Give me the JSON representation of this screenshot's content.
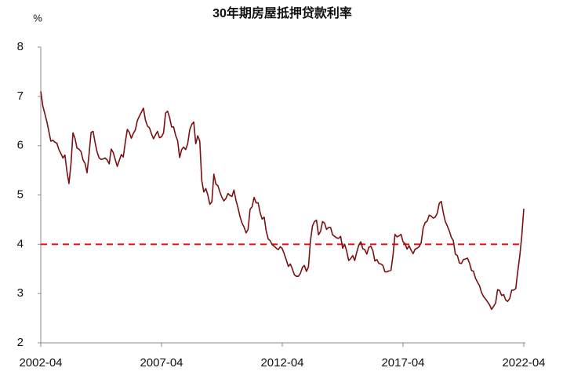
{
  "chart_data": {
    "type": "line",
    "title": "30年期房屋抵押贷款利率",
    "y_label": "%",
    "x": [
      "2002-04",
      "2002-05",
      "2002-06",
      "2002-07",
      "2002-08",
      "2002-09",
      "2002-10",
      "2002-11",
      "2002-12",
      "2003-01",
      "2003-02",
      "2003-03",
      "2003-04",
      "2003-05",
      "2003-06",
      "2003-07",
      "2003-08",
      "2003-09",
      "2003-10",
      "2003-11",
      "2003-12",
      "2004-01",
      "2004-02",
      "2004-03",
      "2004-04",
      "2004-05",
      "2004-06",
      "2004-07",
      "2004-08",
      "2004-09",
      "2004-10",
      "2004-11",
      "2004-12",
      "2005-01",
      "2005-02",
      "2005-03",
      "2005-04",
      "2005-05",
      "2005-06",
      "2005-07",
      "2005-08",
      "2005-09",
      "2005-10",
      "2005-11",
      "2005-12",
      "2006-01",
      "2006-02",
      "2006-03",
      "2006-04",
      "2006-05",
      "2006-06",
      "2006-07",
      "2006-08",
      "2006-09",
      "2006-10",
      "2006-11",
      "2006-12",
      "2007-01",
      "2007-02",
      "2007-03",
      "2007-04",
      "2007-05",
      "2007-06",
      "2007-07",
      "2007-08",
      "2007-09",
      "2007-10",
      "2007-11",
      "2007-12",
      "2008-01",
      "2008-02",
      "2008-03",
      "2008-04",
      "2008-05",
      "2008-06",
      "2008-07",
      "2008-08",
      "2008-09",
      "2008-10",
      "2008-11",
      "2008-12",
      "2009-01",
      "2009-02",
      "2009-03",
      "2009-04",
      "2009-05",
      "2009-06",
      "2009-07",
      "2009-08",
      "2009-09",
      "2009-10",
      "2009-11",
      "2009-12",
      "2010-01",
      "2010-02",
      "2010-03",
      "2010-04",
      "2010-05",
      "2010-06",
      "2010-07",
      "2010-08",
      "2010-09",
      "2010-10",
      "2010-11",
      "2010-12",
      "2011-01",
      "2011-02",
      "2011-03",
      "2011-04",
      "2011-05",
      "2011-06",
      "2011-07",
      "2011-08",
      "2011-09",
      "2011-10",
      "2011-11",
      "2011-12",
      "2012-01",
      "2012-02",
      "2012-03",
      "2012-04",
      "2012-05",
      "2012-06",
      "2012-07",
      "2012-08",
      "2012-09",
      "2012-10",
      "2012-11",
      "2012-12",
      "2013-01",
      "2013-02",
      "2013-03",
      "2013-04",
      "2013-05",
      "2013-06",
      "2013-07",
      "2013-08",
      "2013-09",
      "2013-10",
      "2013-11",
      "2013-12",
      "2014-01",
      "2014-02",
      "2014-03",
      "2014-04",
      "2014-05",
      "2014-06",
      "2014-07",
      "2014-08",
      "2014-09",
      "2014-10",
      "2014-11",
      "2014-12",
      "2015-01",
      "2015-02",
      "2015-03",
      "2015-04",
      "2015-05",
      "2015-06",
      "2015-07",
      "2015-08",
      "2015-09",
      "2015-10",
      "2015-11",
      "2015-12",
      "2016-01",
      "2016-02",
      "2016-03",
      "2016-04",
      "2016-05",
      "2016-06",
      "2016-07",
      "2016-08",
      "2016-09",
      "2016-10",
      "2016-11",
      "2016-12",
      "2017-01",
      "2017-02",
      "2017-03",
      "2017-04",
      "2017-05",
      "2017-06",
      "2017-07",
      "2017-08",
      "2017-09",
      "2017-10",
      "2017-11",
      "2017-12",
      "2018-01",
      "2018-02",
      "2018-03",
      "2018-04",
      "2018-05",
      "2018-06",
      "2018-07",
      "2018-08",
      "2018-09",
      "2018-10",
      "2018-11",
      "2018-12",
      "2019-01",
      "2019-02",
      "2019-03",
      "2019-04",
      "2019-05",
      "2019-06",
      "2019-07",
      "2019-08",
      "2019-09",
      "2019-10",
      "2019-11",
      "2019-12",
      "2020-01",
      "2020-02",
      "2020-03",
      "2020-04",
      "2020-05",
      "2020-06",
      "2020-07",
      "2020-08",
      "2020-09",
      "2020-10",
      "2020-11",
      "2020-12",
      "2021-01",
      "2021-02",
      "2021-03",
      "2021-04",
      "2021-05",
      "2021-06",
      "2021-07",
      "2021-08",
      "2021-09",
      "2021-10",
      "2021-11",
      "2021-12",
      "2022-01",
      "2022-02",
      "2022-03",
      "2022-04"
    ],
    "series": [
      {
        "name": "30年期房屋抵押贷款利率",
        "color": "#7b1010",
        "values": [
          7.1,
          6.81,
          6.65,
          6.49,
          6.29,
          6.09,
          6.11,
          6.07,
          6.05,
          5.92,
          5.84,
          5.75,
          5.81,
          5.48,
          5.23,
          5.63,
          6.26,
          6.15,
          5.95,
          5.93,
          5.88,
          5.71,
          5.64,
          5.45,
          5.83,
          6.27,
          6.29,
          6.06,
          5.87,
          5.75,
          5.72,
          5.73,
          5.75,
          5.71,
          5.63,
          5.93,
          5.86,
          5.72,
          5.58,
          5.7,
          5.82,
          5.77,
          6.07,
          6.33,
          6.27,
          6.15,
          6.25,
          6.32,
          6.51,
          6.6,
          6.68,
          6.76,
          6.52,
          6.4,
          6.36,
          6.24,
          6.14,
          6.22,
          6.29,
          6.16,
          6.18,
          6.26,
          6.66,
          6.7,
          6.57,
          6.38,
          6.38,
          6.21,
          6.1,
          5.76,
          5.92,
          5.97,
          5.92,
          6.04,
          6.32,
          6.43,
          6.48,
          6.04,
          6.2,
          6.09,
          5.29,
          5.06,
          5.13,
          5.0,
          4.81,
          4.86,
          5.42,
          5.22,
          5.19,
          5.06,
          4.95,
          4.88,
          4.93,
          5.03,
          4.99,
          4.97,
          5.1,
          4.89,
          4.74,
          4.56,
          4.43,
          4.35,
          4.23,
          4.3,
          4.71,
          4.76,
          4.95,
          4.84,
          4.84,
          4.64,
          4.51,
          4.55,
          4.27,
          4.11,
          4.07,
          3.99,
          3.96,
          3.92,
          3.89,
          3.95,
          3.91,
          3.8,
          3.68,
          3.55,
          3.6,
          3.5,
          3.38,
          3.35,
          3.35,
          3.41,
          3.53,
          3.57,
          3.45,
          3.54,
          4.07,
          4.37,
          4.46,
          4.49,
          4.19,
          4.26,
          4.46,
          4.43,
          4.3,
          4.34,
          4.34,
          4.19,
          4.16,
          4.13,
          4.12,
          4.16,
          3.92,
          4.0,
          3.86,
          3.67,
          3.71,
          3.77,
          3.67,
          3.84,
          3.98,
          4.05,
          3.91,
          3.89,
          3.8,
          3.94,
          3.96,
          3.87,
          3.66,
          3.69,
          3.61,
          3.6,
          3.57,
          3.44,
          3.44,
          3.46,
          3.47,
          3.77,
          4.2,
          4.15,
          4.17,
          4.2,
          4.05,
          4.01,
          3.9,
          3.97,
          3.88,
          3.81,
          3.9,
          3.92,
          3.95,
          4.03,
          4.33,
          4.44,
          4.47,
          4.59,
          4.57,
          4.53,
          4.55,
          4.63,
          4.83,
          4.87,
          4.64,
          4.46,
          4.37,
          4.27,
          4.14,
          4.07,
          3.8,
          3.77,
          3.62,
          3.61,
          3.69,
          3.7,
          3.72,
          3.62,
          3.47,
          3.45,
          3.31,
          3.23,
          3.16,
          3.02,
          2.94,
          2.89,
          2.83,
          2.77,
          2.68,
          2.74,
          2.81,
          3.08,
          3.06,
          2.96,
          2.98,
          2.87,
          2.84,
          2.9,
          3.07,
          3.07,
          3.1,
          3.45,
          3.76,
          4.17,
          4.72
        ]
      }
    ],
    "xlim": [
      "2002-04",
      "2022-04"
    ],
    "xticks": [
      "2002-04",
      "2007-04",
      "2012-04",
      "2017-04",
      "2022-04"
    ],
    "ylim": [
      2,
      8
    ],
    "yticks": [
      2,
      3,
      4,
      5,
      6,
      7,
      8
    ],
    "reference_line": {
      "value": 4,
      "color": "#e01010"
    },
    "grid": false
  }
}
